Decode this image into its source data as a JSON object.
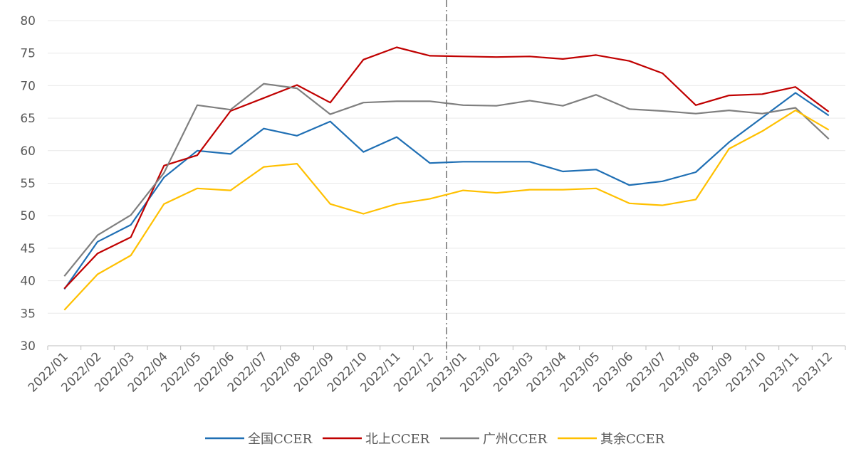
{
  "chart_data": {
    "type": "line",
    "title": "",
    "xlabel": "",
    "ylabel": "",
    "ylim": [
      30,
      80
    ],
    "yticks": [
      30,
      35,
      40,
      45,
      50,
      55,
      60,
      65,
      70,
      75,
      80
    ],
    "grid": true,
    "legend_position": "bottom",
    "divider_after": "2022/12",
    "categories": [
      "2022/01",
      "2022/02",
      "2022/03",
      "2022/04",
      "2022/05",
      "2022/06",
      "2022/07",
      "2022/08",
      "2022/09",
      "2022/10",
      "2022/11",
      "2022/12",
      "2023/01",
      "2023/02",
      "2023/03",
      "2023/04",
      "2023/05",
      "2023/06",
      "2023/07",
      "2023/08",
      "2023/09",
      "2023/10",
      "2023/11",
      "2023/12"
    ],
    "series": [
      {
        "name": "全国CCER",
        "color": "#1f6fb4",
        "values": [
          38.7,
          46.0,
          48.6,
          55.9,
          60.0,
          59.5,
          63.4,
          62.3,
          64.5,
          59.8,
          62.1,
          58.1,
          58.3,
          58.3,
          58.3,
          56.8,
          57.1,
          54.7,
          55.3,
          56.7,
          61.3,
          65.1,
          68.9,
          65.4
        ]
      },
      {
        "name": "北上CCER",
        "color": "#c00000",
        "values": [
          38.8,
          44.2,
          46.7,
          57.7,
          59.3,
          66.1,
          68.1,
          70.1,
          67.4,
          74.0,
          75.9,
          74.6,
          74.5,
          74.4,
          74.5,
          74.1,
          74.7,
          73.8,
          71.9,
          67.0,
          68.5,
          68.7,
          69.8,
          66.0
        ]
      },
      {
        "name": "广州CCER",
        "color": "#7f7f7f",
        "values": [
          40.7,
          47.0,
          50.1,
          56.6,
          67.0,
          66.3,
          70.3,
          69.6,
          65.6,
          67.4,
          67.6,
          67.6,
          67.0,
          66.9,
          67.7,
          66.9,
          68.6,
          66.4,
          66.1,
          65.7,
          66.2,
          65.7,
          66.6,
          61.8
        ]
      },
      {
        "name": "其余CCER",
        "color": "#ffc000",
        "values": [
          35.5,
          41.0,
          43.9,
          51.8,
          54.2,
          53.9,
          57.5,
          58.0,
          51.8,
          50.3,
          51.8,
          52.6,
          53.9,
          53.5,
          54.0,
          54.0,
          54.2,
          51.9,
          51.6,
          52.5,
          60.3,
          63.0,
          66.2,
          63.2
        ]
      }
    ]
  }
}
